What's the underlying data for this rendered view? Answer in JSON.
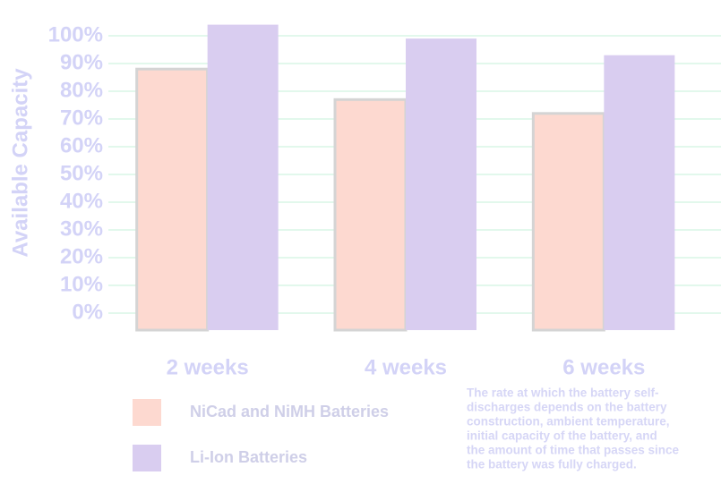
{
  "chart_data": {
    "type": "bar",
    "y_label": "Available Capacity",
    "categories": [
      "2 weeks",
      "4 weeks",
      "6 weeks"
    ],
    "series": [
      {
        "name": "NiCad and NiMH Batteries",
        "color": "#fdd9d0",
        "values": [
          88,
          77,
          72
        ]
      },
      {
        "name": "Li-Ion Batteries",
        "color": "#d9cdf0",
        "values": [
          104,
          99,
          93
        ]
      }
    ],
    "ylim": [
      0,
      110
    ],
    "yticks": [
      {
        "value": 0,
        "label": "0%"
      },
      {
        "value": 10,
        "label": "10%"
      },
      {
        "value": 20,
        "label": "20%"
      },
      {
        "value": 30,
        "label": "30%"
      },
      {
        "value": 40,
        "label": "40%"
      },
      {
        "value": 50,
        "label": "50%"
      },
      {
        "value": 60,
        "label": "60%"
      },
      {
        "value": 70,
        "label": "70%"
      },
      {
        "value": 80,
        "label": "80%"
      },
      {
        "value": 90,
        "label": "90%"
      },
      {
        "value": 100,
        "label": "100%"
      }
    ],
    "grid": true,
    "annotation_lines": [
      "The rate at which the battery self-",
      "discharges depends on the battery",
      "construction, ambient temperature,",
      "initial capacity of the battery, and",
      "the amount of time that passes since",
      "the battery was fully charged."
    ]
  }
}
